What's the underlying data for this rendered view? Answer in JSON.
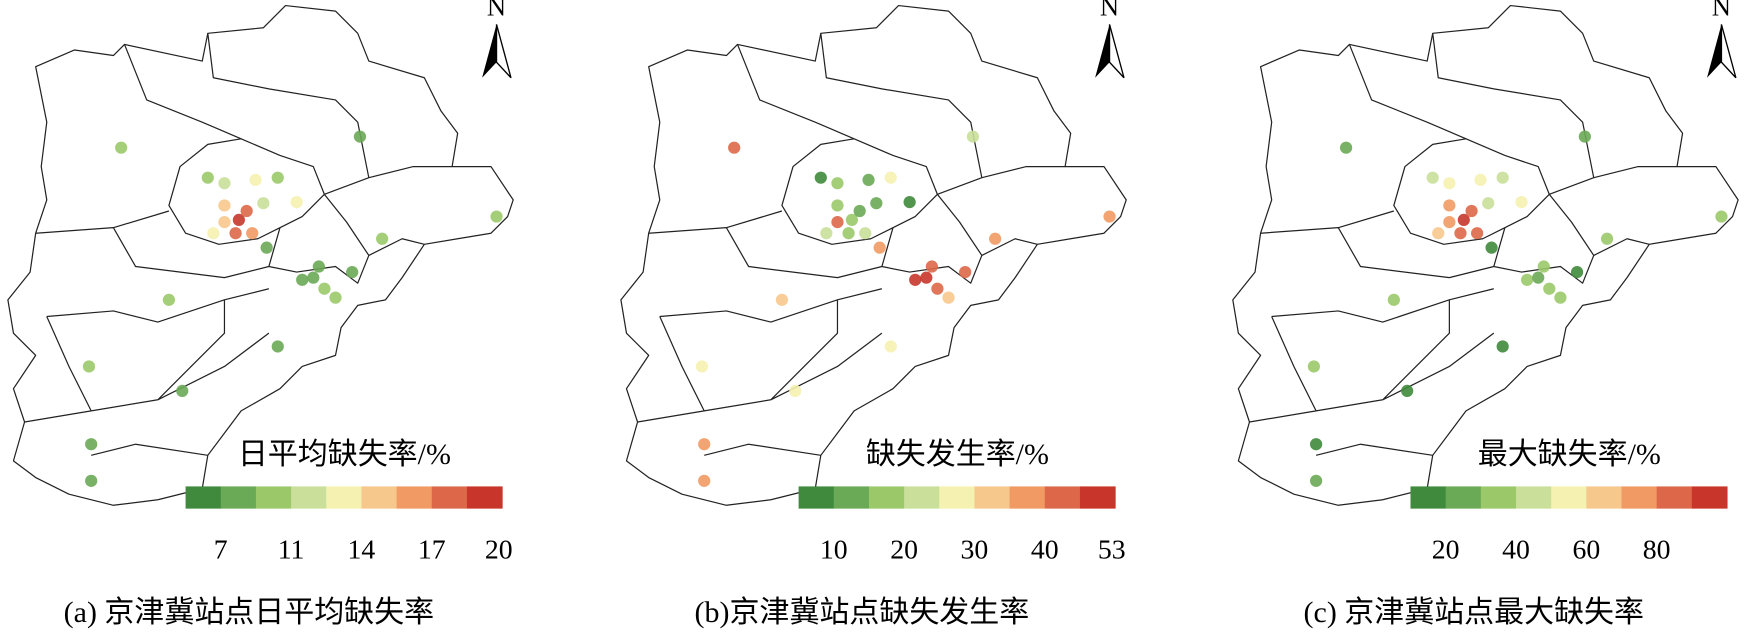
{
  "colors": [
    "#3f8a3c",
    "#6aa955",
    "#9bc96a",
    "#c9df9a",
    "#f5f1b0",
    "#f7c88c",
    "#f19a63",
    "#dd6849",
    "#c8362b"
  ],
  "panels": [
    {
      "legend_title": "日平均缺失率/%",
      "north": "N",
      "caption": "(a) 京津冀站点日平均缺失率",
      "ticks": [
        7,
        11,
        14,
        17,
        20
      ],
      "stations": [
        9,
        8.5,
        10,
        12,
        13,
        10,
        15,
        20,
        18,
        13,
        12,
        13,
        7,
        8,
        7,
        9,
        7,
        9,
        9,
        9,
        9,
        10,
        7,
        7,
        7,
        8,
        17,
        14,
        16,
        8
      ]
    },
    {
      "legend_title": "缺失发生率/%",
      "north": "N",
      "caption": "(b)京津冀站点缺失发生率",
      "ticks": [
        10,
        20,
        30,
        40,
        53
      ],
      "stations": [
        45,
        20,
        8,
        15,
        10,
        25,
        15,
        15,
        12,
        20,
        10,
        8,
        38,
        50,
        53,
        45,
        42,
        30,
        38,
        35,
        33,
        28,
        25,
        28,
        38,
        38,
        15,
        40,
        20,
        45
      ]
    },
    {
      "legend_title": "最大缺失率/%",
      "north": "N",
      "caption": "(c) 京津冀站点最大缺失率",
      "ticks": [
        20,
        40,
        60,
        80
      ],
      "stations": [
        20,
        20,
        40,
        55,
        50,
        40,
        70,
        100,
        85,
        60,
        45,
        50,
        15,
        30,
        25,
        35,
        15,
        30,
        30,
        30,
        30,
        35,
        15,
        15,
        15,
        25,
        85,
        70,
        80,
        35
      ]
    }
  ]
}
